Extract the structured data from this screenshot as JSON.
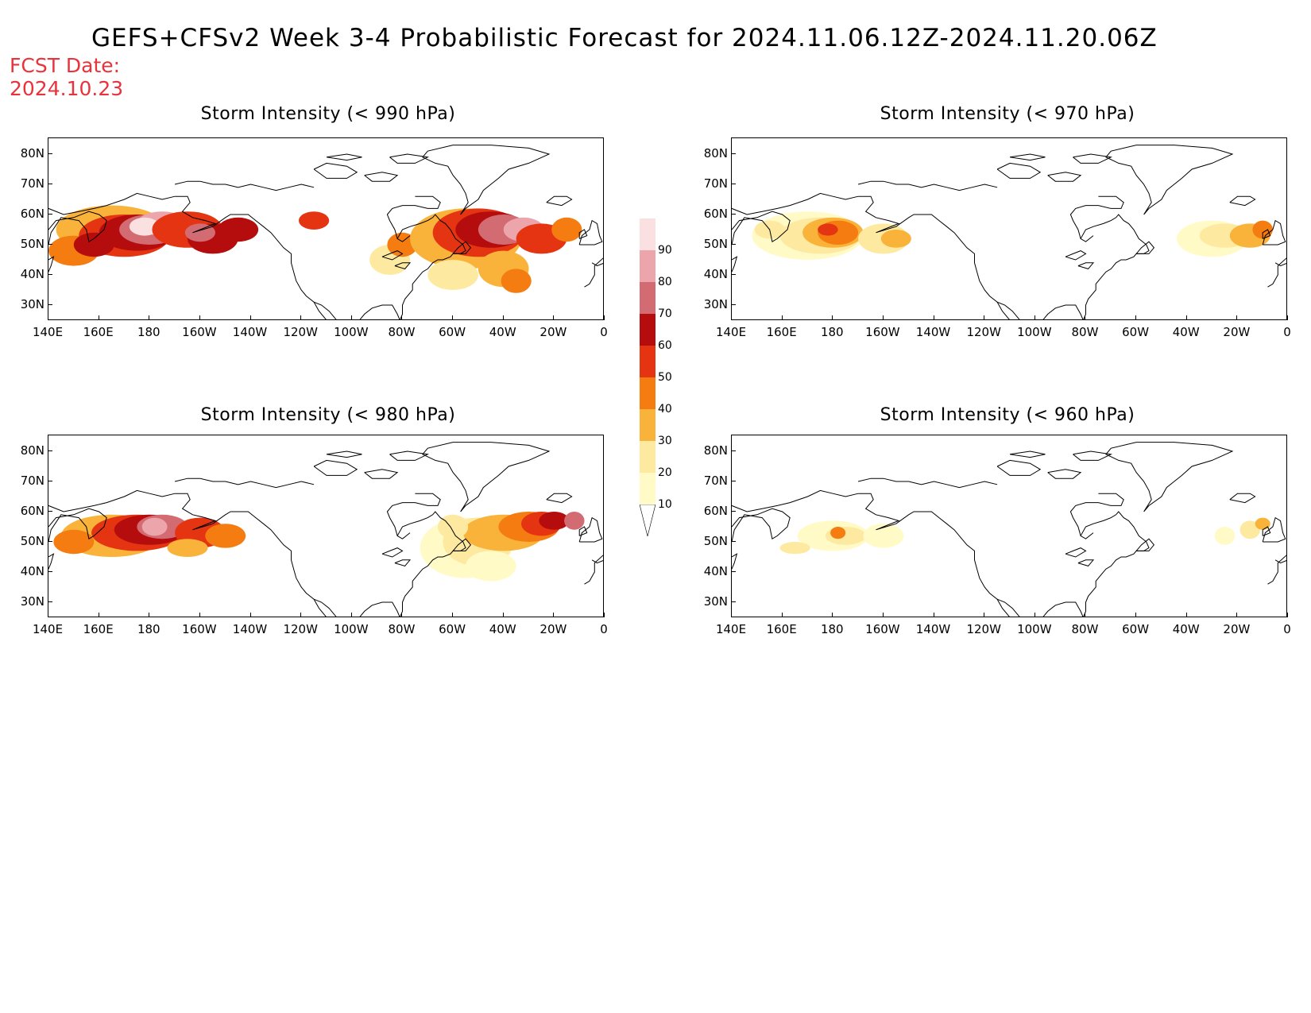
{
  "title": "GEFS+CFSv2 Week 3-4 Probabilistic Forecast for 2024.11.06.12Z-2024.11.20.06Z",
  "fcst_label": "FCST Date:",
  "fcst_date": "2024.10.23",
  "panels": [
    {
      "title": "Storm Intensity (< 990 hPa)"
    },
    {
      "title": "Storm Intensity (< 970 hPa)"
    },
    {
      "title": "Storm Intensity (< 980 hPa)"
    },
    {
      "title": "Storm Intensity (< 960 hPa)"
    }
  ],
  "lat_labels": [
    "80N",
    "70N",
    "60N",
    "50N",
    "40N",
    "30N"
  ],
  "lon_labels": [
    "140E",
    "160E",
    "180",
    "160W",
    "140W",
    "120W",
    "100W",
    "80W",
    "60W",
    "40W",
    "20W",
    "0"
  ],
  "colorbar": {
    "levels": [
      "10",
      "20",
      "30",
      "40",
      "50",
      "60",
      "70",
      "80",
      "90"
    ],
    "colors": [
      "#fffac6",
      "#fde9a0",
      "#f9b33a",
      "#f47c10",
      "#e53411",
      "#b50d0d",
      "#d36b72",
      "#eba5ab",
      "#fbe0e1"
    ]
  }
}
